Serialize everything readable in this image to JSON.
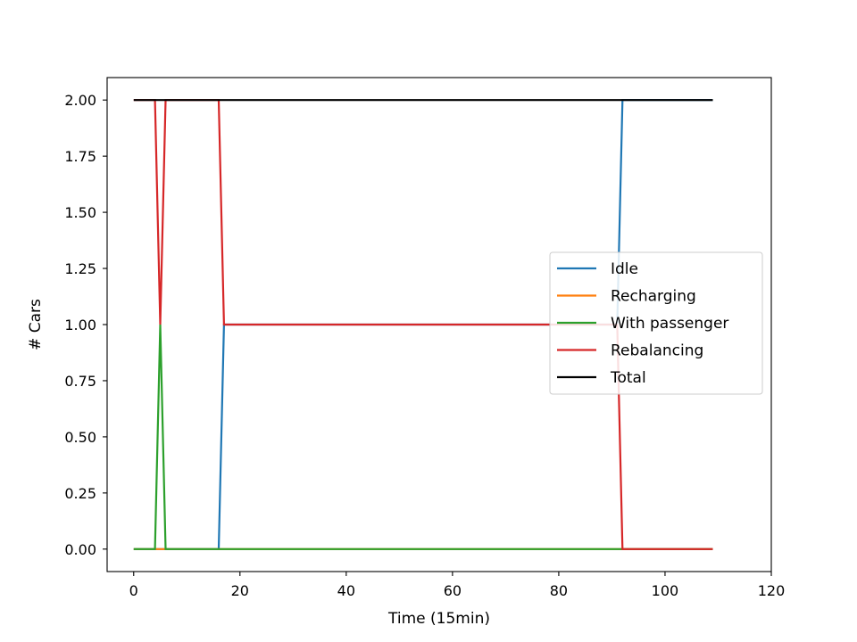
{
  "chart_data": {
    "type": "line",
    "title": "",
    "xlabel": "Time (15min)",
    "ylabel": "# Cars",
    "xlim": [
      -5,
      120
    ],
    "ylim": [
      -0.1,
      2.1
    ],
    "xticks": [
      0,
      20,
      40,
      60,
      80,
      100,
      120
    ],
    "xtick_labels": [
      "0",
      "20",
      "40",
      "60",
      "80",
      "100",
      "120"
    ],
    "yticks": [
      0,
      0.25,
      0.5,
      0.75,
      1.0,
      1.25,
      1.5,
      1.75,
      2.0
    ],
    "ytick_labels": [
      "0.00",
      "0.25",
      "0.50",
      "0.75",
      "1.00",
      "1.25",
      "1.50",
      "1.75",
      "2.00"
    ],
    "grid": false,
    "legend_position": "center-right",
    "series": [
      {
        "name": "Idle",
        "color": "#1f77b4",
        "x": [
          0,
          16,
          17,
          91,
          92,
          109
        ],
        "y": [
          0,
          0,
          1,
          1,
          2,
          2
        ]
      },
      {
        "name": "Recharging",
        "color": "#ff7f0e",
        "x": [
          0,
          109
        ],
        "y": [
          0,
          0
        ]
      },
      {
        "name": "With passenger",
        "color": "#2ca02c",
        "x": [
          0,
          4,
          5,
          6,
          109
        ],
        "y": [
          0,
          0,
          1,
          0,
          0
        ]
      },
      {
        "name": "Rebalancing",
        "color": "#d62728",
        "x": [
          0,
          4,
          5,
          6,
          16,
          17,
          91,
          92,
          109
        ],
        "y": [
          2,
          2,
          1,
          2,
          2,
          1,
          1,
          0,
          0
        ]
      },
      {
        "name": "Total",
        "color": "#000000",
        "x": [
          0,
          109
        ],
        "y": [
          2,
          2
        ]
      }
    ]
  }
}
